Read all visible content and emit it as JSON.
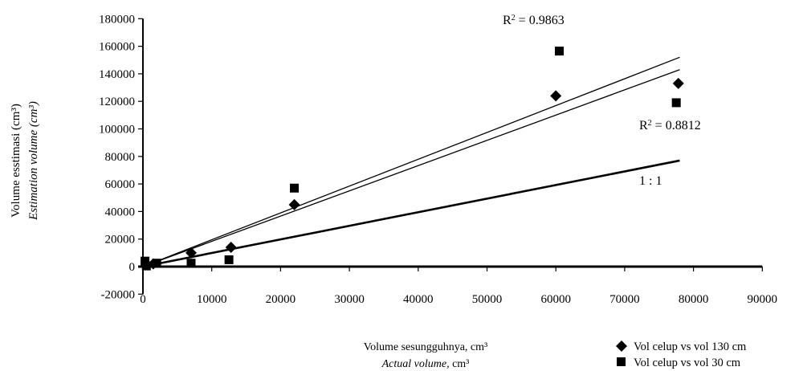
{
  "chart_data": {
    "type": "scatter",
    "x_axis": {
      "label_line1": "Volume sesungguhnya, cm³",
      "label_line2_italic": "Actual volume,",
      "label_line2_unit": "cm³",
      "min": 0,
      "max": 90000,
      "ticks": [
        0,
        10000,
        20000,
        30000,
        40000,
        50000,
        60000,
        70000,
        80000,
        90000
      ]
    },
    "y_axis": {
      "label_line1": "Volume esstimasi (cm³)",
      "label_line2_italic": "Estimation volume  (cm³)",
      "min": -20000,
      "max": 180000,
      "ticks": [
        -20000,
        0,
        20000,
        40000,
        60000,
        80000,
        100000,
        120000,
        140000,
        160000,
        180000
      ]
    },
    "series": [
      {
        "name": "Vol  celup vs vol 130 cm",
        "marker": "diamond",
        "points": [
          [
            500,
            1500
          ],
          [
            1500,
            2000
          ],
          [
            7000,
            10000
          ],
          [
            12800,
            14000
          ],
          [
            22000,
            45000
          ],
          [
            60000,
            124000
          ],
          [
            77800,
            133000
          ]
        ]
      },
      {
        "name": "Vol  celup vs vol 30 cm",
        "marker": "square",
        "points": [
          [
            300,
            4000
          ],
          [
            500,
            500
          ],
          [
            2000,
            2500
          ],
          [
            7000,
            2500
          ],
          [
            12500,
            5000
          ],
          [
            22000,
            57000
          ],
          [
            60500,
            156500
          ],
          [
            77500,
            119000
          ]
        ]
      }
    ],
    "lines": [
      {
        "type": "trend",
        "from": [
          0,
          0
        ],
        "to": [
          78000,
          152000
        ],
        "stroke": 1.3
      },
      {
        "type": "trend",
        "from": [
          0,
          0
        ],
        "to": [
          78000,
          143000
        ],
        "stroke": 1.3
      },
      {
        "type": "reference",
        "from": [
          0,
          0
        ],
        "to": [
          78000,
          77000
        ],
        "stroke": 2.6
      }
    ],
    "annotations": {
      "r2_top": "0.9863",
      "r2_right": "0.8812",
      "one_to_one": "1 : 1"
    },
    "legend_position": "bottom-right",
    "grid": false
  }
}
